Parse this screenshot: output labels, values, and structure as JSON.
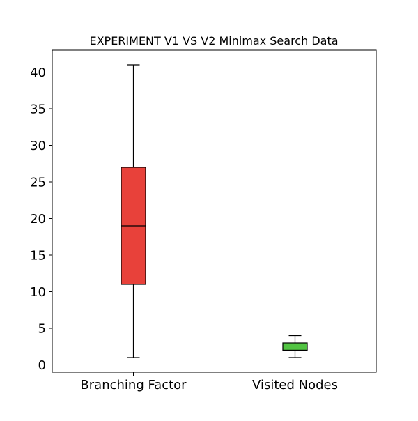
{
  "chart_data": {
    "type": "box",
    "title": "EXPERIMENT V1 VS V2 Minimax Search Data",
    "xlabel": "",
    "ylabel": "",
    "ylim": [
      -1,
      43
    ],
    "yticks": [
      0,
      5,
      10,
      15,
      20,
      25,
      30,
      35,
      40
    ],
    "categories": [
      "Branching Factor",
      "Visited Nodes"
    ],
    "boxes": [
      {
        "label": "Branching Factor",
        "whisker_low": 1,
        "q1": 11,
        "median": 19,
        "q3": 27,
        "whisker_high": 41,
        "color": "#e8413a"
      },
      {
        "label": "Visited Nodes",
        "whisker_low": 1,
        "q1": 2,
        "median": 2,
        "q3": 3,
        "whisker_high": 4,
        "color": "#52c443"
      }
    ],
    "grid": false,
    "legend": "none"
  }
}
